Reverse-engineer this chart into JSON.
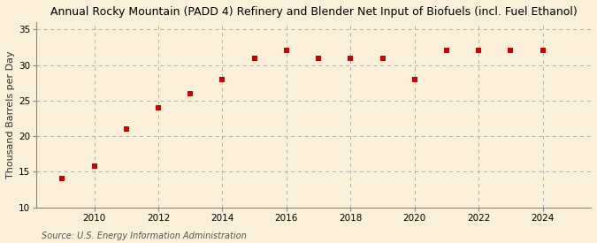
{
  "title": "Annual Rocky Mountain (PADD 4) Refinery and Blender Net Input of Biofuels (incl. Fuel Ethanol)",
  "ylabel": "Thousand Barrels per Day",
  "source": "Source: U.S. Energy Information Administration",
  "years": [
    2009,
    2010,
    2011,
    2012,
    2013,
    2014,
    2015,
    2016,
    2017,
    2018,
    2019,
    2020,
    2021,
    2022,
    2023,
    2024
  ],
  "values": [
    14.0,
    15.8,
    21.0,
    24.0,
    26.0,
    28.0,
    31.0,
    32.0,
    31.0,
    31.0,
    31.0,
    28.0,
    32.0,
    32.0,
    32.0,
    32.0
  ],
  "marker_color": "#cc0000",
  "marker": "s",
  "marker_size": 4,
  "ylim": [
    10,
    36
  ],
  "yticks": [
    10,
    15,
    20,
    25,
    30,
    35
  ],
  "xlim": [
    2008.2,
    2025.5
  ],
  "xticks": [
    2010,
    2012,
    2014,
    2016,
    2018,
    2020,
    2022,
    2024
  ],
  "bg_color": "#faefd8",
  "grid_color": "#b0b0b0",
  "title_fontsize": 9.0,
  "label_fontsize": 8.0,
  "tick_fontsize": 7.5,
  "source_fontsize": 7.0
}
